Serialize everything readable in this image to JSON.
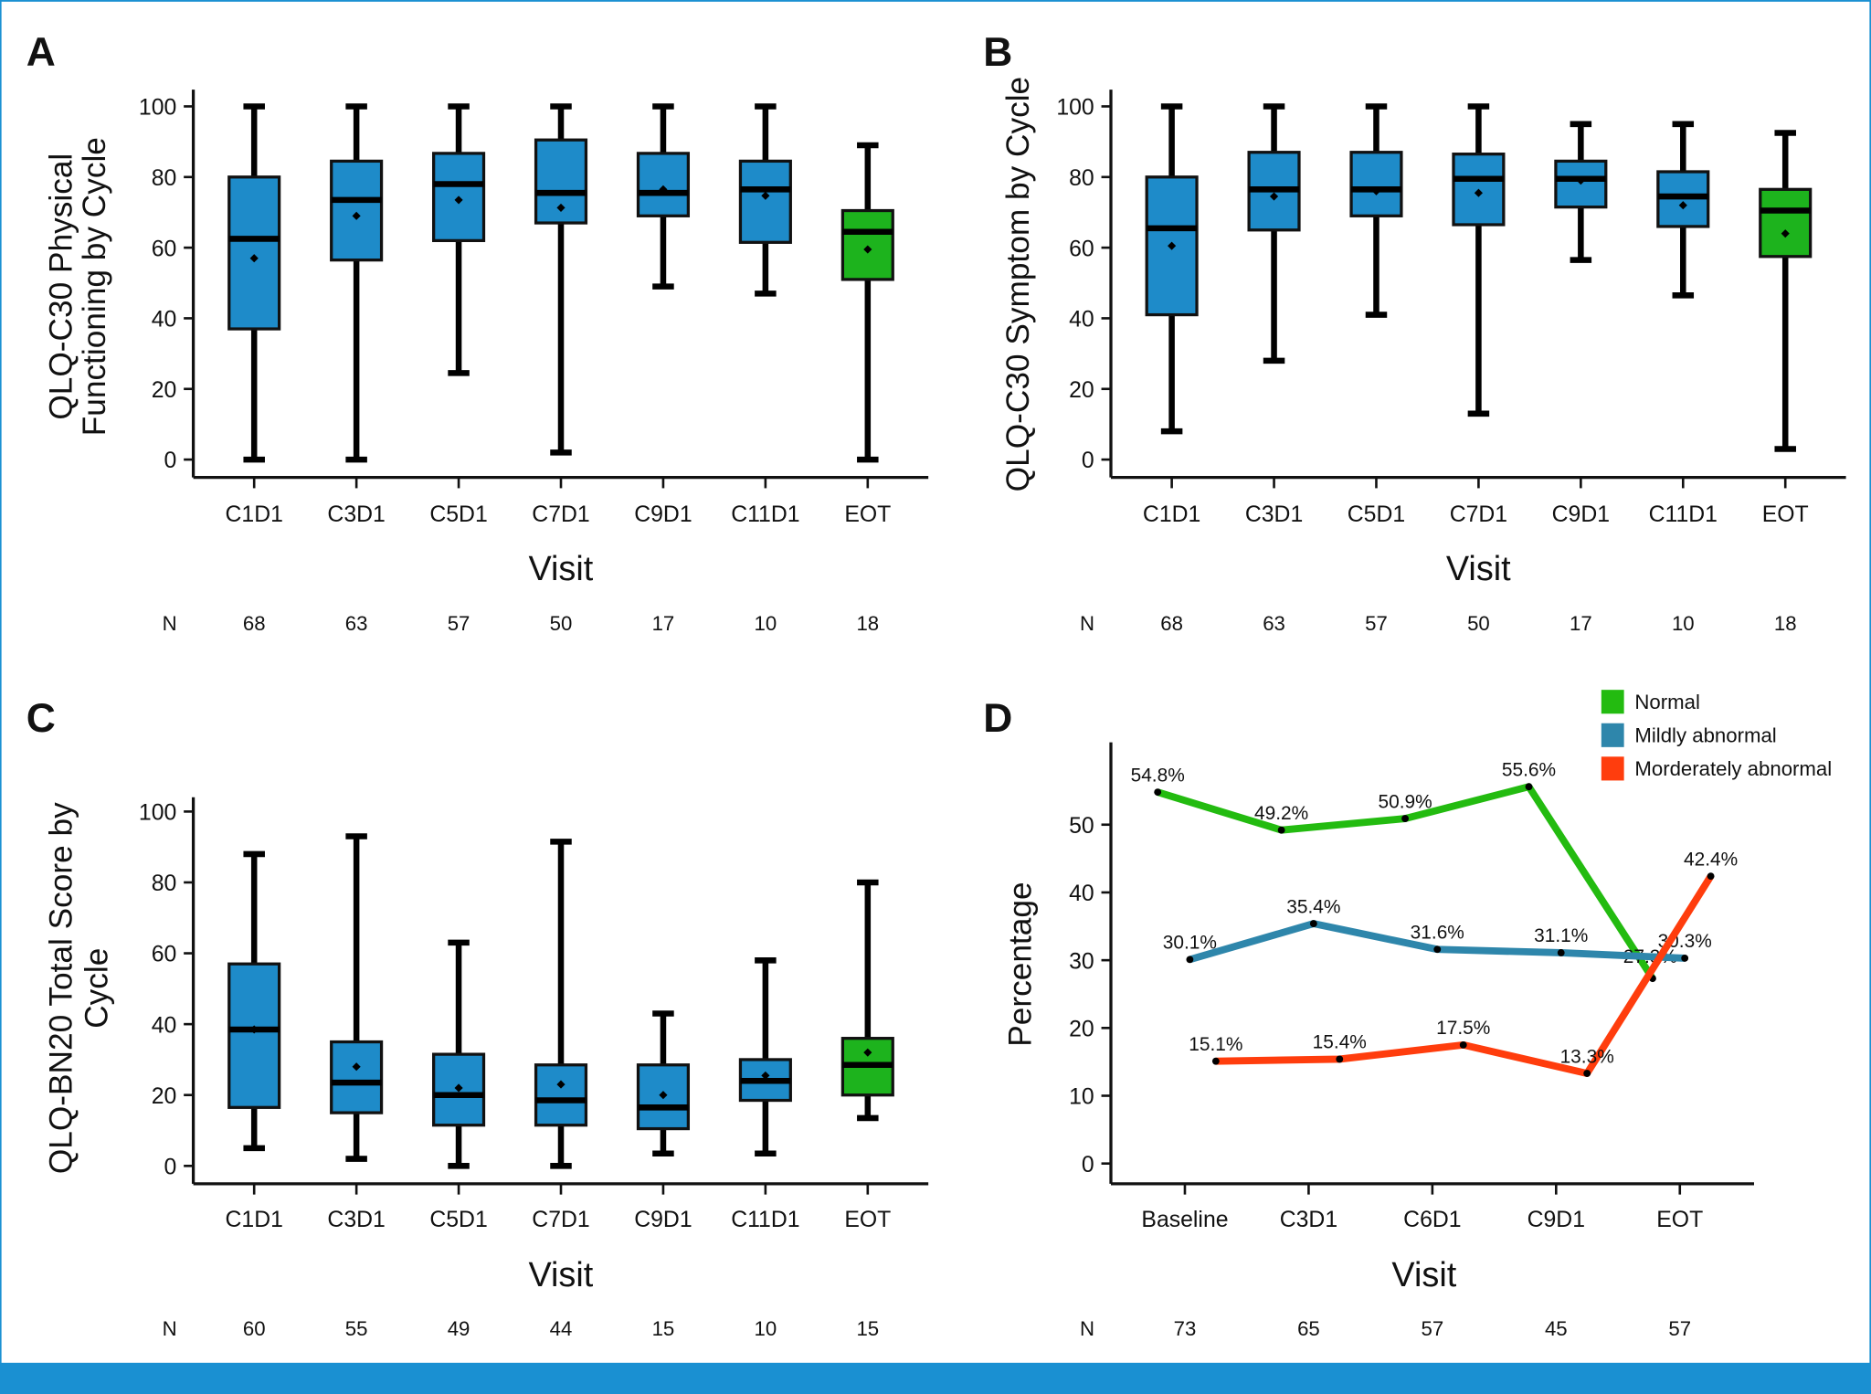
{
  "colors": {
    "box_blue": "#1e8bc9",
    "box_green": "#1db31d",
    "normal": "#23bb10",
    "mild": "#2e86ab",
    "moderate": "#ff3d0d",
    "frame": "#1a90d2"
  },
  "chart_data": [
    {
      "type": "box",
      "panel": "A",
      "ylabel": [
        "QLQ-C30 Physical",
        "Functioning by Cycle"
      ],
      "xlabel": "Visit",
      "ylim": [
        0,
        100
      ],
      "yticks": [
        0,
        20,
        40,
        60,
        80,
        100
      ],
      "categories": [
        "C1D1",
        "C3D1",
        "C5D1",
        "C7D1",
        "C9D1",
        "C11D1",
        "EOT"
      ],
      "n_label": "N",
      "n": [
        "68",
        "63",
        "57",
        "50",
        "17",
        "10",
        "18"
      ],
      "highlight": [
        "blue",
        "blue",
        "blue",
        "blue",
        "blue",
        "blue",
        "green"
      ],
      "boxes": [
        {
          "min": 0,
          "q1": 37,
          "median": 62.5,
          "q3": 80,
          "max": 100,
          "mean": 57
        },
        {
          "min": 0,
          "q1": 56.5,
          "median": 73.5,
          "q3": 84.5,
          "max": 100,
          "mean": 69
        },
        {
          "min": 24.5,
          "q1": 62,
          "median": 78,
          "q3": 86.7,
          "max": 100,
          "mean": 73.5
        },
        {
          "min": 2,
          "q1": 67,
          "median": 75.5,
          "q3": 90.5,
          "max": 100,
          "mean": 71.3
        },
        {
          "min": 49,
          "q1": 69,
          "median": 75.5,
          "q3": 86.7,
          "max": 100,
          "mean": 76.5
        },
        {
          "min": 47,
          "q1": 61.5,
          "median": 76.5,
          "q3": 84.5,
          "max": 100,
          "mean": 74.7
        },
        {
          "min": 0,
          "q1": 51,
          "median": 64.5,
          "q3": 70.5,
          "max": 89,
          "mean": 59.5
        }
      ]
    },
    {
      "type": "box",
      "panel": "B",
      "ylabel": [
        "QLQ-C30 Symptom by Cycle"
      ],
      "xlabel": "Visit",
      "ylim": [
        0,
        100
      ],
      "yticks": [
        0,
        20,
        40,
        60,
        80,
        100
      ],
      "categories": [
        "C1D1",
        "C3D1",
        "C5D1",
        "C7D1",
        "C9D1",
        "C11D1",
        "EOT"
      ],
      "n_label": "N",
      "n": [
        "68",
        "63",
        "57",
        "50",
        "17",
        "10",
        "18"
      ],
      "highlight": [
        "blue",
        "blue",
        "blue",
        "blue",
        "blue",
        "blue",
        "green"
      ],
      "boxes": [
        {
          "min": 8,
          "q1": 41,
          "median": 65.5,
          "q3": 80,
          "max": 100,
          "mean": 60.5
        },
        {
          "min": 28,
          "q1": 65,
          "median": 76.5,
          "q3": 87,
          "max": 100,
          "mean": 74.5
        },
        {
          "min": 41,
          "q1": 69,
          "median": 76.5,
          "q3": 87,
          "max": 100,
          "mean": 76
        },
        {
          "min": 13,
          "q1": 66.5,
          "median": 79.5,
          "q3": 86.5,
          "max": 100,
          "mean": 75.5
        },
        {
          "min": 56.5,
          "q1": 71.5,
          "median": 79.5,
          "q3": 84.5,
          "max": 95,
          "mean": 79
        },
        {
          "min": 46.5,
          "q1": 66,
          "median": 74.5,
          "q3": 81.5,
          "max": 95,
          "mean": 72
        },
        {
          "min": 3,
          "q1": 57.5,
          "median": 70.5,
          "q3": 76.5,
          "max": 92.5,
          "mean": 64
        }
      ]
    },
    {
      "type": "box",
      "panel": "C",
      "ylabel": [
        "QLQ-BN20 Total Score by",
        "Cycle"
      ],
      "xlabel": "Visit",
      "ylim": [
        0,
        100
      ],
      "yticks": [
        0,
        20,
        40,
        60,
        80,
        100
      ],
      "categories": [
        "C1D1",
        "C3D1",
        "C5D1",
        "C7D1",
        "C9D1",
        "C11D1",
        "EOT"
      ],
      "n_label": "N",
      "n": [
        "60",
        "55",
        "49",
        "44",
        "15",
        "10",
        "15"
      ],
      "highlight": [
        "blue",
        "blue",
        "blue",
        "blue",
        "blue",
        "blue",
        "green"
      ],
      "boxes": [
        {
          "min": 5,
          "q1": 16.5,
          "median": 38.5,
          "q3": 57,
          "max": 88,
          "mean": 38.5
        },
        {
          "min": 2,
          "q1": 15,
          "median": 23.5,
          "q3": 35,
          "max": 93,
          "mean": 28
        },
        {
          "min": 0,
          "q1": 11.5,
          "median": 20,
          "q3": 31.5,
          "max": 63,
          "mean": 22
        },
        {
          "min": 0,
          "q1": 11.5,
          "median": 18.5,
          "q3": 28.5,
          "max": 91.5,
          "mean": 23
        },
        {
          "min": 3.5,
          "q1": 10.5,
          "median": 16.5,
          "q3": 28.5,
          "max": 43,
          "mean": 20
        },
        {
          "min": 3.5,
          "q1": 18.5,
          "median": 24,
          "q3": 30,
          "max": 58,
          "mean": 25.5
        },
        {
          "min": 13.5,
          "q1": 20,
          "median": 28.5,
          "q3": 36,
          "max": 80,
          "mean": 32
        }
      ]
    },
    {
      "type": "line",
      "panel": "D",
      "ylabel": "Percentage",
      "xlabel": "Visit",
      "ylim": [
        0,
        62
      ],
      "yticks": [
        0,
        10,
        20,
        30,
        40,
        50
      ],
      "categories": [
        "Baseline",
        "C3D1",
        "C6D1",
        "C9D1",
        "EOT"
      ],
      "n_label": "N",
      "n": [
        "73",
        "65",
        "57",
        "45",
        "57"
      ],
      "legend_position": "top-right",
      "series": [
        {
          "name": "Normal",
          "color_key": "normal",
          "values": [
            54.8,
            49.2,
            50.9,
            55.6,
            27.3
          ],
          "labels": [
            "54.8%",
            "49.2%",
            "50.9%",
            "55.6%",
            "27.3%"
          ]
        },
        {
          "name": "Mildly abnormal",
          "color_key": "mild",
          "values": [
            30.1,
            35.4,
            31.6,
            31.1,
            30.3
          ],
          "labels": [
            "30.1%",
            "35.4%",
            "31.6%",
            "31.1%",
            "30.3%"
          ]
        },
        {
          "name": "Morderately abnormal",
          "color_key": "moderate",
          "values": [
            15.1,
            15.4,
            17.5,
            13.3,
            42.4
          ],
          "labels": [
            "15.1%",
            "15.4%",
            "17.5%",
            "13.3%",
            "42.4%"
          ]
        }
      ]
    }
  ]
}
